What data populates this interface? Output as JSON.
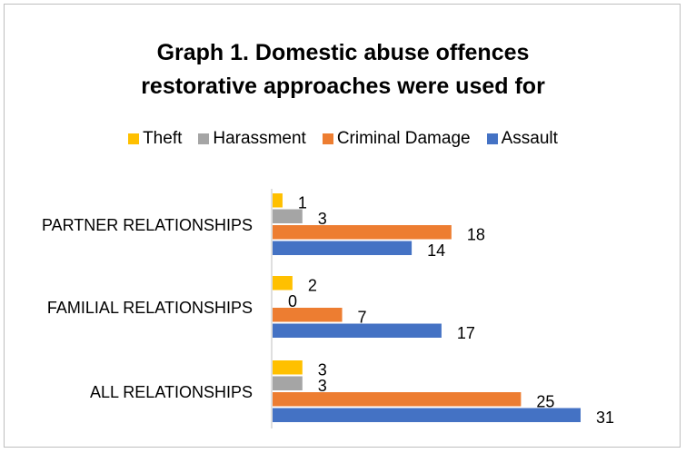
{
  "chart_data": {
    "type": "bar",
    "orientation": "horizontal",
    "title_lines": [
      "Graph 1. Domestic abuse offences",
      "restorative approaches were used for"
    ],
    "categories": [
      "PARTNER RELATIONSHIPS",
      "FAMILIAL RELATIONSHIPS",
      "ALL RELATIONSHIPS"
    ],
    "series": [
      {
        "name": "Theft",
        "color": "#ffc000",
        "values": [
          1,
          2,
          3
        ]
      },
      {
        "name": "Harassment",
        "color": "#a5a5a5",
        "values": [
          3,
          0,
          3
        ]
      },
      {
        "name": "Criminal Damage",
        "color": "#ed7d31",
        "values": [
          18,
          7,
          25
        ]
      },
      {
        "name": "Assault",
        "color": "#4472c4",
        "values": [
          14,
          17,
          31
        ]
      }
    ],
    "legend_position": "top",
    "data_labels": true,
    "grid": false,
    "xlim": [
      0,
      31
    ]
  }
}
